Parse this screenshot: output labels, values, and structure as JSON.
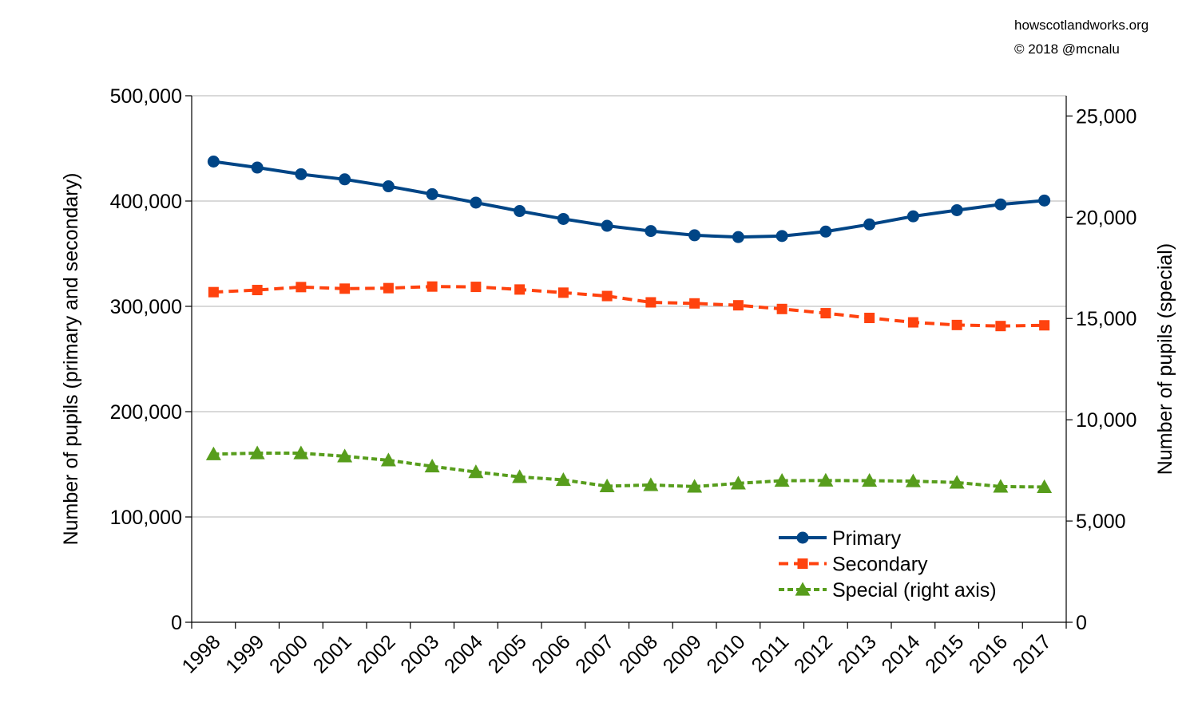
{
  "credit": {
    "site": "howscotlandworks.org",
    "copyright": "© 2018  @mcnalu"
  },
  "chart_data": {
    "type": "line",
    "title": "",
    "xlabel": "",
    "ylabel": "Number of pupils (primary and secondary)",
    "ylabel_right": "Number of pupils (special)",
    "ylim": [
      0,
      500000
    ],
    "ylim_right": [
      0,
      26000
    ],
    "yticks": [
      0,
      100000,
      200000,
      300000,
      400000,
      500000
    ],
    "yticks_right": [
      0,
      5000,
      10000,
      15000,
      20000,
      25000
    ],
    "grid": true,
    "legend_position": "bottom-right",
    "x": [
      "1998",
      "1999",
      "2000",
      "2001",
      "2002",
      "2003",
      "2004",
      "2005",
      "2006",
      "2007",
      "2008",
      "2009",
      "2010",
      "2011",
      "2012",
      "2013",
      "2014",
      "2015",
      "2016",
      "2017"
    ],
    "series": [
      {
        "name": "Primary",
        "axis": "left",
        "color": "#004586",
        "marker": "circle",
        "dash": "solid",
        "values": [
          437500,
          431800,
          425500,
          420600,
          414000,
          406500,
          398500,
          390500,
          383000,
          376500,
          371500,
          367500,
          365800,
          366800,
          371000,
          377800,
          385500,
          391300,
          396800,
          400500
        ]
      },
      {
        "name": "Secondary",
        "axis": "left",
        "color": "#ff420e",
        "marker": "square",
        "dash": "dashed",
        "values": [
          313500,
          315500,
          318300,
          316800,
          317300,
          318800,
          318500,
          316000,
          313000,
          309800,
          303800,
          302800,
          301000,
          297500,
          293500,
          289000,
          284800,
          282300,
          281300,
          282000
        ]
      },
      {
        "name": "Special (right axis)",
        "axis": "right",
        "color": "#579d1c",
        "marker": "triangle",
        "dash": "dotted",
        "values": [
          8300,
          8350,
          8350,
          8200,
          8000,
          7700,
          7420,
          7180,
          7030,
          6720,
          6780,
          6700,
          6860,
          6990,
          7000,
          6990,
          6970,
          6900,
          6700,
          6680
        ]
      }
    ]
  }
}
